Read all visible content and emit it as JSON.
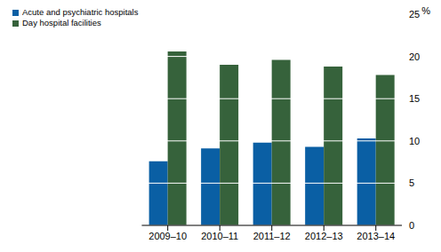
{
  "chart_data": {
    "type": "bar",
    "categories": [
      "2009–10",
      "2010–11",
      "2011–12",
      "2012–13",
      "2013–14"
    ],
    "series": [
      {
        "name": "Acute and psychiatric hospitals",
        "color": "#0a5fa4",
        "values": [
          7.6,
          9.1,
          9.8,
          9.3,
          10.3
        ]
      },
      {
        "name": "Day hospital facilities",
        "color": "#36623b",
        "values": [
          20.6,
          19.0,
          19.6,
          18.8,
          17.8
        ]
      }
    ],
    "y_label": "%",
    "ylim": [
      0,
      25
    ],
    "yticks": [
      0,
      5,
      10,
      15,
      20,
      25
    ],
    "grid": true,
    "legend": "top left"
  }
}
